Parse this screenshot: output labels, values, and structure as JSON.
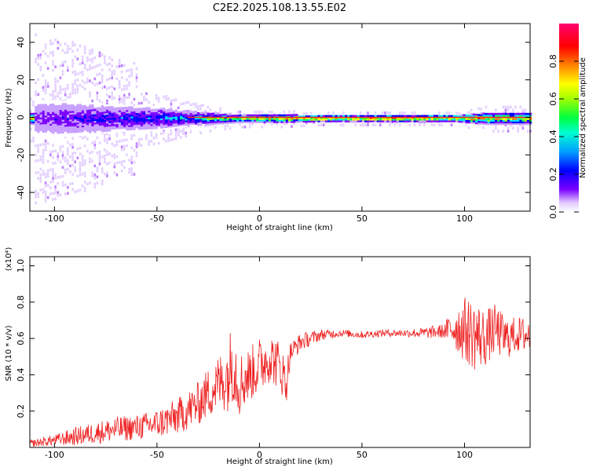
{
  "chart_data": [
    {
      "type": "heatmap",
      "title": "C2E2.2025.108.13.55.E02",
      "xlabel": "Height of straight line (km)",
      "ylabel": "Frequency (Hz)",
      "xlim": [
        -112,
        132
      ],
      "ylim": [
        -50,
        50
      ],
      "xticks": [
        -100,
        -50,
        0,
        50,
        100
      ],
      "yticks": [
        -40,
        -20,
        0,
        20,
        40
      ],
      "colorbar": {
        "label": "Normalized spectral amplitude",
        "range": [
          0,
          1
        ],
        "ticks": [
          "0.0",
          "0.2",
          "0.4",
          "0.6",
          "0.8"
        ],
        "colors": [
          "#ffffff",
          "#c8a0ff",
          "#7a00ff",
          "#0000ff",
          "#00e0ff",
          "#00ff60",
          "#a0ff00",
          "#ffff00",
          "#ff8000",
          "#ff0000",
          "#ff0080"
        ]
      },
      "band_spread_hz": [
        {
          "x": -110,
          "spread": 10,
          "amp": 0.2
        },
        {
          "x": -90,
          "spread": 9,
          "amp": 0.3
        },
        {
          "x": -70,
          "spread": 7,
          "amp": 0.35
        },
        {
          "x": -50,
          "spread": 6,
          "amp": 0.4
        },
        {
          "x": -35,
          "spread": 4,
          "amp": 0.45
        },
        {
          "x": -25,
          "spread": 3,
          "amp": 0.6
        },
        {
          "x": -10,
          "spread": 2,
          "amp": 0.7
        },
        {
          "x": 10,
          "spread": 2,
          "amp": 0.85
        },
        {
          "x": 30,
          "spread": 1.5,
          "amp": 0.95
        },
        {
          "x": 95,
          "spread": 1.5,
          "amp": 0.95
        },
        {
          "x": 110,
          "spread": 3,
          "amp": 0.85
        },
        {
          "x": 132,
          "spread": 3,
          "amp": 0.85
        }
      ]
    },
    {
      "type": "line",
      "title": "",
      "xlabel": "Height of straight line (km)",
      "ylabel": "SNR (10 * v/v)",
      "yscale_label": "(x10⁴)",
      "xlim": [
        -112,
        132
      ],
      "ylim": [
        0,
        1.05
      ],
      "xticks": [
        -100,
        -50,
        0,
        50,
        100
      ],
      "yticks": [
        0.2,
        0.4,
        0.6,
        0.8,
        1.0
      ],
      "color": "#ee2222",
      "series": [
        {
          "x": [
            -112,
            -100,
            -90,
            -80,
            -70,
            -60,
            -50,
            -40,
            -30,
            -25,
            -20,
            -15,
            -13,
            -10,
            -5,
            0,
            5,
            10,
            13,
            15,
            20,
            30,
            40,
            50,
            60,
            70,
            80,
            90,
            95,
            100,
            105,
            110,
            115,
            120,
            125,
            132
          ],
          "y": [
            0.02,
            0.04,
            0.06,
            0.08,
            0.1,
            0.11,
            0.13,
            0.17,
            0.24,
            0.3,
            0.35,
            0.4,
            0.5,
            0.35,
            0.4,
            0.45,
            0.5,
            0.45,
            0.35,
            0.52,
            0.58,
            0.62,
            0.63,
            0.62,
            0.63,
            0.63,
            0.63,
            0.64,
            0.66,
            0.65,
            0.62,
            0.6,
            0.65,
            0.6,
            0.62,
            0.62
          ],
          "noise": [
            0.02,
            0.03,
            0.05,
            0.06,
            0.07,
            0.07,
            0.08,
            0.1,
            0.12,
            0.14,
            0.16,
            0.2,
            0.25,
            0.18,
            0.15,
            0.16,
            0.14,
            0.14,
            0.12,
            0.06,
            0.05,
            0.03,
            0.02,
            0.02,
            0.02,
            0.02,
            0.03,
            0.04,
            0.12,
            0.18,
            0.2,
            0.16,
            0.14,
            0.12,
            0.1,
            0.1
          ]
        }
      ]
    }
  ]
}
